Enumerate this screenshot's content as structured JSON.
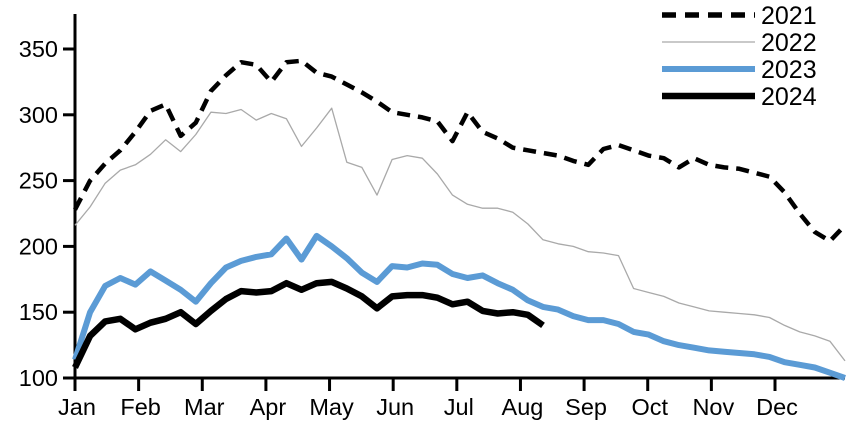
{
  "chart_data": {
    "type": "line",
    "title": "",
    "xlabel": "",
    "ylabel": "",
    "x_axis": {
      "tick_labels": [
        "Jan",
        "Feb",
        "Mar",
        "Apr",
        "May",
        "Jun",
        "Jul",
        "Aug",
        "Sep",
        "Oct",
        "Nov",
        "Dec"
      ]
    },
    "y_axis": {
      "ticks": [
        100,
        150,
        200,
        250,
        300,
        350
      ],
      "range": [
        100,
        350
      ]
    },
    "grid": false,
    "legend_position": "top-right",
    "frequency": "weekly",
    "series": [
      {
        "name": "2021",
        "color": "#000000",
        "line_style": "dashed",
        "values": [
          228,
          250,
          263,
          273,
          287,
          303,
          308,
          284,
          294,
          318,
          330,
          340,
          338,
          325,
          340,
          341,
          332,
          329,
          323,
          317,
          310,
          302,
          300,
          298,
          295,
          280,
          302,
          287,
          282,
          275,
          273,
          271,
          269,
          265,
          262,
          274,
          277,
          273,
          269,
          267,
          260,
          267,
          262,
          260,
          259,
          256,
          253,
          241,
          225,
          211,
          204,
          216
        ]
      },
      {
        "name": "2022",
        "color": "#a9a9a9",
        "line_style": "solid",
        "values": [
          216,
          230,
          248,
          258,
          262,
          270,
          281,
          272,
          285,
          302,
          301,
          304,
          296,
          301,
          297,
          276,
          290,
          305,
          264,
          260,
          239,
          266,
          269,
          267,
          255,
          239,
          232,
          229,
          229,
          226,
          217,
          205,
          202,
          200,
          196,
          195,
          193,
          168,
          165,
          162,
          157,
          154,
          151,
          150,
          149,
          148,
          146,
          140,
          135,
          132,
          128,
          113
        ]
      },
      {
        "name": "2023",
        "color": "#5B9BD5",
        "line_style": "solid",
        "values": [
          114,
          150,
          170,
          176,
          171,
          181,
          174,
          167,
          158,
          172,
          184,
          189,
          192,
          194,
          206,
          190,
          208,
          200,
          191,
          180,
          173,
          185,
          184,
          187,
          186,
          179,
          176,
          178,
          172,
          167,
          159,
          154,
          152,
          147,
          144,
          144,
          141,
          135,
          133,
          128,
          125,
          123,
          121,
          120,
          119,
          118,
          116,
          112,
          110,
          108,
          104,
          100
        ]
      },
      {
        "name": "2024",
        "color": "#000000",
        "line_style": "solid",
        "values": [
          108,
          132,
          143,
          145,
          137,
          142,
          145,
          150,
          141,
          151,
          160,
          166,
          165,
          166,
          172,
          167,
          172,
          173,
          168,
          162,
          153,
          162,
          163,
          163,
          161,
          156,
          158,
          151,
          149,
          150,
          148,
          140
        ]
      }
    ]
  }
}
